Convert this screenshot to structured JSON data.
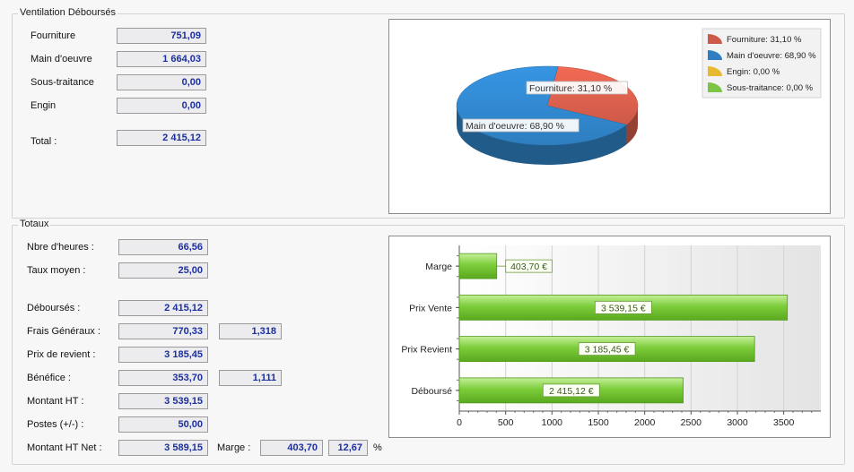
{
  "ventilation": {
    "title": "Ventilation Déboursés",
    "rows": [
      {
        "label": "Fourniture",
        "value": "751,09"
      },
      {
        "label": "Main d'oeuvre",
        "value": "1 664,03"
      },
      {
        "label": "Sous-traitance",
        "value": "0,00"
      },
      {
        "label": "Engin",
        "value": "0,00"
      }
    ],
    "total_label": "Total :",
    "total_value": "2 415,12"
  },
  "totaux": {
    "title": "Totaux",
    "rows": [
      {
        "label": "Nbre d'heures :",
        "value": "66,56"
      },
      {
        "label": "Taux moyen :",
        "value": "25,00"
      },
      {
        "label": "Déboursés :",
        "value": "2 415,12"
      },
      {
        "label": "Frais Généraux :",
        "value": "770,33",
        "coef": "1,318"
      },
      {
        "label": "Prix de revient :",
        "value": "3 185,45"
      },
      {
        "label": "Bénéfice :",
        "value": "353,70",
        "coef": "1,111"
      },
      {
        "label": "Montant HT :",
        "value": "3 539,15"
      },
      {
        "label": "Postes (+/-) :",
        "value": "50,00"
      },
      {
        "label": "Montant HT Net :",
        "value": "3 589,15"
      }
    ],
    "marge_label": "Marge :",
    "marge_value": "403,70",
    "marge_pct": "12,67",
    "pct_sign": "%"
  },
  "chart_data": [
    {
      "type": "pie",
      "slices": [
        {
          "name": "Fourniture",
          "value": 31.1,
          "color": "#cd5a48",
          "label": "Fourniture: 31,10 %"
        },
        {
          "name": "Main d'oeuvre",
          "value": 68.9,
          "color": "#2e7ec0",
          "label": "Main d'oeuvre: 68,90 %"
        },
        {
          "name": "Engin",
          "value": 0.0,
          "color": "#e8b830",
          "label": "Engin: 0,00 %"
        },
        {
          "name": "Sous-traitance",
          "value": 0.0,
          "color": "#7cc444",
          "label": "Sous-traitance: 0,00 %"
        }
      ],
      "data_labels": [
        "Fourniture: 31,10 %",
        "Main d'oeuvre: 68,90 %"
      ],
      "legend_position": "top-right"
    },
    {
      "type": "bar",
      "orientation": "horizontal",
      "categories": [
        "Marge",
        "Prix Vente",
        "Prix Revient",
        "Déboursé"
      ],
      "values": [
        403.7,
        3539.15,
        3185.45,
        2415.12
      ],
      "data_labels": [
        "403,70 €",
        "3 539,15 €",
        "3 185,45 €",
        "2 415,12 €"
      ],
      "xlim": [
        0,
        3900
      ],
      "xticks": [
        0,
        500,
        1000,
        1500,
        2000,
        2500,
        3000,
        3500
      ],
      "grid": true,
      "bar_color": "#7ccd3a"
    }
  ]
}
